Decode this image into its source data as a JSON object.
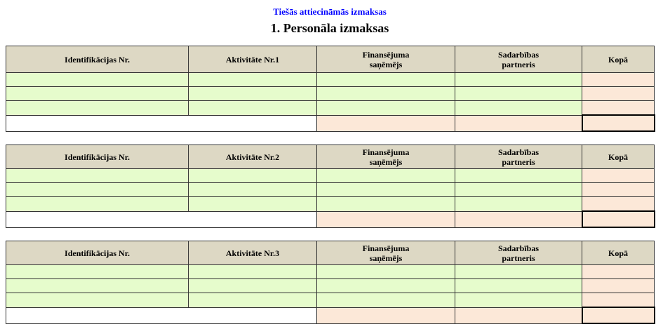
{
  "header": {
    "subtitle": "Tiešās attiecināmās izmaksas",
    "title": "1. Personāla izmaksas"
  },
  "tables": [
    {
      "columns": [
        "Identifikācijas Nr.",
        "Aktivitāte Nr.1",
        "Finansējuma saņēmējs",
        "Sadarbības partneris",
        "Kopā"
      ]
    },
    {
      "columns": [
        "Identifikācijas Nr.",
        "Aktivitāte Nr.2",
        "Finansējuma saņēmējs",
        "Sadarbības partneris",
        "Kopā"
      ]
    },
    {
      "columns": [
        "Identifikācijas Nr.",
        "Aktivitāte Nr.3",
        "Finansējuma saņēmējs",
        "Sadarbības partneris",
        "Kopā"
      ]
    }
  ],
  "colors": {
    "header_bg": "#ddd8c4",
    "input_bg": "#e6fccc",
    "sum_bg": "#fce8d8",
    "subtitle": "#0000ff"
  }
}
